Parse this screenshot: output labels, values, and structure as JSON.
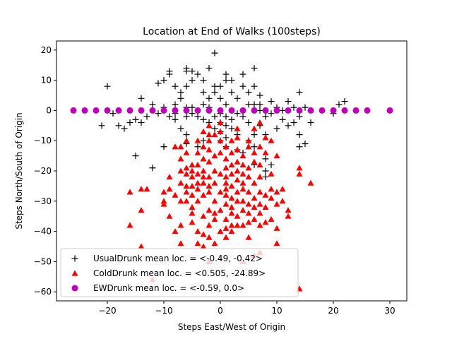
{
  "chart_data": {
    "type": "scatter",
    "title": "Location at End of Walks (100steps)",
    "xlabel": "Steps East/West of Origin",
    "ylabel": "Steps North/South of Origin",
    "xlim": [
      -29,
      33
    ],
    "ylim": [
      -63,
      23
    ],
    "xticks": [
      -20,
      -10,
      0,
      10,
      20,
      30
    ],
    "yticks": [
      20,
      10,
      0,
      -10,
      -20,
      -30,
      -40,
      -50,
      -60
    ],
    "legend_position": "lower-left",
    "grid": false,
    "series": [
      {
        "name": "UsualDrunk mean loc. = <-0.49, -0.42>",
        "marker": "plus",
        "color": "#000000",
        "points": [
          [
            -20,
            8
          ],
          [
            -21,
            -5
          ],
          [
            -18,
            -5
          ],
          [
            -17,
            -6
          ],
          [
            -14,
            4
          ],
          [
            -14,
            -4
          ],
          [
            -13,
            -2
          ],
          [
            -12,
            2
          ],
          [
            -11,
            -1
          ],
          [
            -12,
            -19
          ],
          [
            -10,
            -12
          ],
          [
            -9,
            12
          ],
          [
            -9,
            13
          ],
          [
            -10,
            10
          ],
          [
            -11,
            9
          ],
          [
            -8,
            8
          ],
          [
            -7,
            6
          ],
          [
            -6,
            13
          ],
          [
            -6,
            14
          ],
          [
            -5,
            13
          ],
          [
            -5,
            10
          ],
          [
            -6,
            8
          ],
          [
            -7,
            4
          ],
          [
            -8,
            2
          ],
          [
            -9,
            -2
          ],
          [
            -8,
            -3
          ],
          [
            -7,
            -6
          ],
          [
            -6,
            -8
          ],
          [
            -6,
            -11
          ],
          [
            -4,
            12
          ],
          [
            -3,
            10
          ],
          [
            -2,
            14
          ],
          [
            -3,
            6
          ],
          [
            -2,
            4
          ],
          [
            -3,
            2
          ],
          [
            -1,
            8
          ],
          [
            -1,
            6
          ],
          [
            -2,
            1
          ],
          [
            -1,
            -2
          ],
          [
            -2,
            -4
          ],
          [
            -3,
            -10
          ],
          [
            -4,
            -12
          ],
          [
            -4,
            0
          ],
          [
            -5,
            1
          ],
          [
            -5,
            -1
          ],
          [
            -4,
            -2
          ],
          [
            -3,
            -3
          ],
          [
            0,
            -1
          ],
          [
            1,
            -2
          ],
          [
            0,
            -4
          ],
          [
            1,
            -5
          ],
          [
            -1,
            -6
          ],
          [
            -1,
            19
          ],
          [
            0,
            8
          ],
          [
            0,
            4
          ],
          [
            1,
            2
          ],
          [
            1,
            10
          ],
          [
            1,
            12
          ],
          [
            2,
            10
          ],
          [
            2,
            6
          ],
          [
            3,
            4
          ],
          [
            2,
            0
          ],
          [
            3,
            -1
          ],
          [
            2,
            -6
          ],
          [
            1,
            -9
          ],
          [
            0,
            -10
          ],
          [
            1,
            -12
          ],
          [
            3,
            -13
          ],
          [
            4,
            12
          ],
          [
            4,
            8
          ],
          [
            5,
            6
          ],
          [
            5,
            2
          ],
          [
            4,
            -2
          ],
          [
            5,
            -4
          ],
          [
            6,
            -8
          ],
          [
            5,
            -10
          ],
          [
            4,
            -14
          ],
          [
            6,
            -18
          ],
          [
            6,
            14
          ],
          [
            6,
            8
          ],
          [
            7,
            5
          ],
          [
            7,
            2
          ],
          [
            8,
            -2
          ],
          [
            7,
            -5
          ],
          [
            8,
            -8
          ],
          [
            6,
            -12
          ],
          [
            8,
            -16
          ],
          [
            8,
            -20
          ],
          [
            9,
            -18
          ],
          [
            8,
            -22
          ],
          [
            9,
            3
          ],
          [
            10,
            1
          ],
          [
            11,
            0
          ],
          [
            11,
            -3
          ],
          [
            12,
            -5
          ],
          [
            13,
            -4
          ],
          [
            14,
            -8
          ],
          [
            14,
            -12
          ],
          [
            15,
            -11
          ],
          [
            14,
            6
          ],
          [
            14,
            -2
          ],
          [
            15,
            1
          ],
          [
            16,
            -4
          ],
          [
            21,
            2
          ],
          [
            22,
            3
          ],
          [
            20,
            -1
          ],
          [
            -15,
            -15
          ],
          [
            -19,
            -1
          ],
          [
            -16,
            -4
          ],
          [
            -15,
            -3
          ],
          [
            -10,
            1
          ],
          [
            -8,
            -1
          ],
          [
            -6,
            1
          ],
          [
            -6,
            -2
          ],
          [
            0,
            -7
          ],
          [
            2,
            -3
          ],
          [
            3,
            -8
          ],
          [
            4,
            0
          ],
          [
            6,
            2
          ],
          [
            7,
            0
          ],
          [
            9,
            -1
          ],
          [
            10,
            -6
          ],
          [
            12,
            3
          ],
          [
            13,
            1
          ]
        ]
      },
      {
        "name": "ColdDrunk mean loc. = <0.505, -24.89>",
        "marker": "triangle",
        "color": "#ff0000",
        "points": [
          [
            -16,
            -27
          ],
          [
            -16,
            -38
          ],
          [
            -14,
            -26
          ],
          [
            -14,
            -33
          ],
          [
            -14,
            -45
          ],
          [
            -13,
            -26
          ],
          [
            -12,
            -56
          ],
          [
            -10,
            -27
          ],
          [
            -10,
            -30
          ],
          [
            -10,
            -31
          ],
          [
            -9,
            -22
          ],
          [
            -9,
            -26
          ],
          [
            -9,
            -35
          ],
          [
            -8,
            -28
          ],
          [
            -8,
            -40
          ],
          [
            -7,
            -12
          ],
          [
            -7,
            -16
          ],
          [
            -7,
            -20
          ],
          [
            -7,
            -24
          ],
          [
            -7,
            -30
          ],
          [
            -7,
            -38
          ],
          [
            -7,
            -44
          ],
          [
            -6,
            -14
          ],
          [
            -6,
            -19
          ],
          [
            -6,
            -21
          ],
          [
            -6,
            -25
          ],
          [
            -6,
            -27
          ],
          [
            -6,
            -30
          ],
          [
            -5,
            -18
          ],
          [
            -5,
            -20
          ],
          [
            -5,
            -22
          ],
          [
            -5,
            -25
          ],
          [
            -5,
            -28
          ],
          [
            -5,
            -32
          ],
          [
            -5,
            -34
          ],
          [
            -5,
            -37
          ],
          [
            -4,
            -10
          ],
          [
            -4,
            -14
          ],
          [
            -4,
            -18
          ],
          [
            -4,
            -21
          ],
          [
            -4,
            -24
          ],
          [
            -4,
            -26
          ],
          [
            -4,
            -30
          ],
          [
            -4,
            -40
          ],
          [
            -4,
            -44
          ],
          [
            -3,
            -7
          ],
          [
            -3,
            -12
          ],
          [
            -3,
            -16
          ],
          [
            -3,
            -20
          ],
          [
            -3,
            -22
          ],
          [
            -3,
            -24
          ],
          [
            -3,
            -28
          ],
          [
            -3,
            -35
          ],
          [
            -3,
            -41
          ],
          [
            -3,
            -45
          ],
          [
            -2,
            -5
          ],
          [
            -2,
            -10
          ],
          [
            -2,
            -13
          ],
          [
            -2,
            -17
          ],
          [
            -2,
            -22
          ],
          [
            -2,
            -25
          ],
          [
            -2,
            -27
          ],
          [
            -2,
            -33
          ],
          [
            -2,
            -38
          ],
          [
            -2,
            -42
          ],
          [
            -2,
            -50
          ],
          [
            -1,
            -8
          ],
          [
            -1,
            -15
          ],
          [
            -1,
            -20
          ],
          [
            -1,
            -24
          ],
          [
            -1,
            -30
          ],
          [
            -1,
            -34
          ],
          [
            -1,
            -36
          ],
          [
            -1,
            -44
          ],
          [
            0,
            -7
          ],
          [
            0,
            -10
          ],
          [
            0,
            -14
          ],
          [
            0,
            -21
          ],
          [
            0,
            -27
          ],
          [
            0,
            -33
          ],
          [
            0,
            -40
          ],
          [
            1,
            -12
          ],
          [
            1,
            -16
          ],
          [
            1,
            -19
          ],
          [
            1,
            -22
          ],
          [
            1,
            -24
          ],
          [
            1,
            -26
          ],
          [
            1,
            -28
          ],
          [
            1,
            -31
          ],
          [
            1,
            -36
          ],
          [
            1,
            -39
          ],
          [
            1,
            -42
          ],
          [
            2,
            -10
          ],
          [
            2,
            -14
          ],
          [
            2,
            -18
          ],
          [
            2,
            -21
          ],
          [
            2,
            -25
          ],
          [
            2,
            -29
          ],
          [
            2,
            -32
          ],
          [
            2,
            -34
          ],
          [
            2,
            -38
          ],
          [
            2,
            -40
          ],
          [
            3,
            -6
          ],
          [
            3,
            -13
          ],
          [
            3,
            -17
          ],
          [
            3,
            -20
          ],
          [
            3,
            -23
          ],
          [
            3,
            -27
          ],
          [
            3,
            -30
          ],
          [
            3,
            -35
          ],
          [
            3,
            -38
          ],
          [
            4,
            -15
          ],
          [
            4,
            -18
          ],
          [
            4,
            -21
          ],
          [
            4,
            -24
          ],
          [
            4,
            -26
          ],
          [
            4,
            -30
          ],
          [
            4,
            -33
          ],
          [
            4,
            -38
          ],
          [
            4,
            -50
          ],
          [
            5,
            -10
          ],
          [
            5,
            -12
          ],
          [
            5,
            -19
          ],
          [
            5,
            -22
          ],
          [
            5,
            -27
          ],
          [
            5,
            -31
          ],
          [
            5,
            -34
          ],
          [
            5,
            -37
          ],
          [
            5,
            -42
          ],
          [
            6,
            -6
          ],
          [
            6,
            -14
          ],
          [
            6,
            -17
          ],
          [
            6,
            -24
          ],
          [
            6,
            -29
          ],
          [
            6,
            -32
          ],
          [
            6,
            -36
          ],
          [
            6,
            -48
          ],
          [
            7,
            -4
          ],
          [
            7,
            -12
          ],
          [
            7,
            -22
          ],
          [
            7,
            -27
          ],
          [
            7,
            -31
          ],
          [
            7,
            -34
          ],
          [
            7,
            -38
          ],
          [
            7,
            -47
          ],
          [
            8,
            -9
          ],
          [
            8,
            -28
          ],
          [
            8,
            -32
          ],
          [
            8,
            -37
          ],
          [
            9,
            -10
          ],
          [
            9,
            -26
          ],
          [
            9,
            -29
          ],
          [
            9,
            -36
          ],
          [
            10,
            -15
          ],
          [
            10,
            -27
          ],
          [
            10,
            -31
          ],
          [
            10,
            -39
          ],
          [
            10,
            -44
          ],
          [
            11,
            -26
          ],
          [
            11,
            -30
          ],
          [
            12,
            -33
          ],
          [
            12,
            -35
          ],
          [
            14,
            -19
          ],
          [
            14,
            -21
          ],
          [
            14,
            -59
          ],
          [
            16,
            -24
          ],
          [
            -6,
            -10
          ],
          [
            -2,
            -8
          ],
          [
            0,
            -4
          ],
          [
            3,
            -9
          ],
          [
            7,
            -18
          ],
          [
            8,
            -14
          ],
          [
            9,
            -21
          ],
          [
            -8,
            -12
          ]
        ]
      },
      {
        "name": "EWDrunk mean loc. = <-0.59, 0.0>",
        "marker": "circle",
        "color": "#bf00bf",
        "points": [
          [
            -26,
            0
          ],
          [
            -24,
            0
          ],
          [
            -22,
            0
          ],
          [
            -20,
            0
          ],
          [
            -18,
            0
          ],
          [
            -16,
            0
          ],
          [
            -14,
            0
          ],
          [
            -12,
            0
          ],
          [
            -10,
            0
          ],
          [
            -8,
            0
          ],
          [
            -6,
            0
          ],
          [
            -4,
            0
          ],
          [
            -2,
            0
          ],
          [
            0,
            0
          ],
          [
            2,
            0
          ],
          [
            4,
            0
          ],
          [
            6,
            0
          ],
          [
            8,
            0
          ],
          [
            10,
            0
          ],
          [
            12,
            0
          ],
          [
            14,
            0
          ],
          [
            16,
            0
          ],
          [
            18,
            0
          ],
          [
            20,
            0
          ],
          [
            22,
            0
          ],
          [
            24,
            0
          ],
          [
            26,
            0
          ],
          [
            30,
            0
          ]
        ]
      }
    ]
  }
}
